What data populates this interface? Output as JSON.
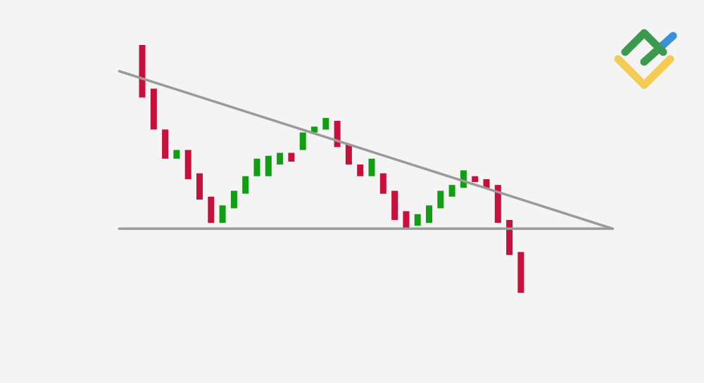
{
  "colors": {
    "background": "#f4f4f4",
    "bullish": "#129e12",
    "bearish": "#c8103c",
    "trendline": "#9a9a9a",
    "logo_green": "#3b9a4f",
    "logo_yellow": "#f2cc53",
    "logo_blue": "#3c8fd8"
  },
  "logo": {
    "icon": "brand-logo-icon"
  },
  "chart_data": {
    "type": "candlestick",
    "title": "",
    "xlabel": "",
    "ylabel": "",
    "ylim": [
      0,
      100
    ],
    "grid": false,
    "legend": "none",
    "candles": [
      {
        "x": 1,
        "open": 100,
        "close": 82
      },
      {
        "x": 2,
        "open": 85,
        "close": 71
      },
      {
        "x": 3,
        "open": 71,
        "close": 61
      },
      {
        "x": 4,
        "open": 61,
        "close": 64
      },
      {
        "x": 5,
        "open": 64,
        "close": 54
      },
      {
        "x": 6,
        "open": 56,
        "close": 47
      },
      {
        "x": 7,
        "open": 48,
        "close": 39
      },
      {
        "x": 8,
        "open": 39,
        "close": 45
      },
      {
        "x": 9,
        "open": 44,
        "close": 50
      },
      {
        "x": 10,
        "open": 49,
        "close": 55
      },
      {
        "x": 11,
        "open": 55,
        "close": 61
      },
      {
        "x": 12,
        "open": 55,
        "close": 62
      },
      {
        "x": 13,
        "open": 59,
        "close": 63
      },
      {
        "x": 14,
        "open": 63,
        "close": 60
      },
      {
        "x": 15,
        "open": 64,
        "close": 70
      },
      {
        "x": 16,
        "open": 70,
        "close": 72
      },
      {
        "x": 17,
        "open": 71,
        "close": 75
      },
      {
        "x": 18,
        "open": 74,
        "close": 65
      },
      {
        "x": 19,
        "open": 66,
        "close": 59
      },
      {
        "x": 20,
        "open": 59,
        "close": 55
      },
      {
        "x": 21,
        "open": 55,
        "close": 61
      },
      {
        "x": 22,
        "open": 56,
        "close": 49
      },
      {
        "x": 23,
        "open": 50,
        "close": 40
      },
      {
        "x": 24,
        "open": 43,
        "close": 37
      },
      {
        "x": 25,
        "open": 38,
        "close": 42
      },
      {
        "x": 26,
        "open": 39,
        "close": 45
      },
      {
        "x": 27,
        "open": 44,
        "close": 50
      },
      {
        "x": 28,
        "open": 48,
        "close": 52
      },
      {
        "x": 29,
        "open": 51,
        "close": 57
      },
      {
        "x": 30,
        "open": 55,
        "close": 53
      },
      {
        "x": 31,
        "open": 54,
        "close": 51
      },
      {
        "x": 32,
        "open": 52,
        "close": 39
      },
      {
        "x": 33,
        "open": 40,
        "close": 28
      },
      {
        "x": 34,
        "open": 29,
        "close": 15
      }
    ],
    "trendlines": [
      {
        "name": "",
        "kind": "resistance",
        "points": [
          [
            -1,
            91
          ],
          [
            42,
            37
          ]
        ]
      },
      {
        "name": "",
        "kind": "support",
        "points": [
          [
            -1,
            37
          ],
          [
            42,
            37
          ]
        ]
      }
    ]
  }
}
